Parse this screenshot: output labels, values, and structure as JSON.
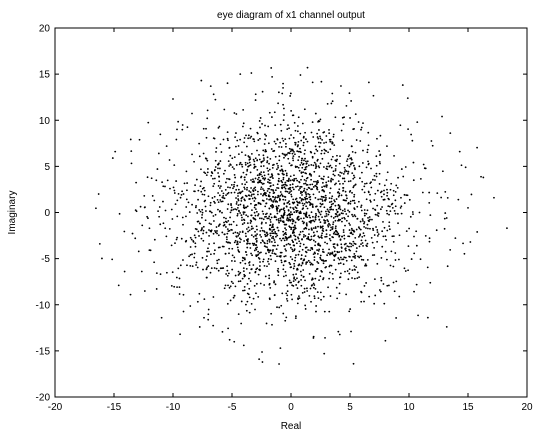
{
  "chart_data": {
    "type": "scatter",
    "title": "eye diagram of x1 channel output",
    "xlabel": "Real",
    "ylabel": "Imaginary",
    "xlim": [
      -20,
      20
    ],
    "ylim": [
      -20,
      20
    ],
    "xticks": [
      -20,
      -15,
      -10,
      -5,
      0,
      5,
      10,
      15,
      20
    ],
    "yticks": [
      -20,
      -15,
      -10,
      -5,
      0,
      5,
      10,
      15,
      20
    ],
    "grid": false,
    "marker_color": "#000000",
    "series": [
      {
        "distribution": "2-D Gaussian cloud centred at origin",
        "count": 2600,
        "center": [
          0,
          0
        ],
        "sigma_real": 5.0,
        "sigma_imag": 5.0,
        "points": [
          [
            -16.3,
            2.0
          ],
          [
            -16.2,
            -3.4
          ],
          [
            -15.1,
            5.9
          ],
          [
            -14.9,
            6.6
          ],
          [
            -14.6,
            -7.9
          ],
          [
            -14.1,
            -6.4
          ],
          [
            -13.6,
            -8.9
          ],
          [
            -13.2,
            -2.8
          ],
          [
            -11.9,
            -4.1
          ],
          [
            -11.2,
            6.4
          ],
          [
            -10.0,
            12.3
          ],
          [
            -9.4,
            -13.2
          ],
          [
            -7.6,
            14.3
          ],
          [
            -6.8,
            13.7
          ],
          [
            -5.2,
            -13.8
          ],
          [
            -4.3,
            15.0
          ],
          [
            -4.0,
            -14.4
          ],
          [
            -2.7,
            -15.9
          ],
          [
            -1.6,
            14.7
          ],
          [
            -0.9,
            -14.7
          ],
          [
            0.8,
            14.9
          ],
          [
            1.4,
            15.7
          ],
          [
            1.9,
            -13.6
          ],
          [
            3.5,
            12.9
          ],
          [
            5.3,
            -16.4
          ],
          [
            6.6,
            14.1
          ],
          [
            8.0,
            -13.9
          ],
          [
            9.9,
            12.4
          ],
          [
            10.7,
            9.8
          ],
          [
            11.6,
            -11.4
          ],
          [
            12.8,
            10.4
          ],
          [
            13.5,
            8.6
          ],
          [
            13.2,
            -12.4
          ],
          [
            14.3,
            6.6
          ],
          [
            14.8,
            4.9
          ],
          [
            15.2,
            -3.2
          ],
          [
            16.3,
            3.8
          ],
          [
            17.2,
            1.6
          ],
          [
            18.3,
            -1.7
          ],
          [
            15.0,
            0.5
          ]
        ]
      }
    ]
  }
}
